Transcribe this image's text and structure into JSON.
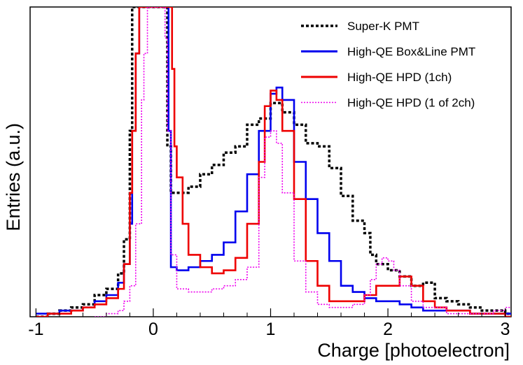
{
  "chart_data": {
    "type": "line",
    "xlabel": "Charge [photoelectron]",
    "ylabel": "Entries (a.u.)",
    "xlim": [
      -1.05,
      3.05
    ],
    "ylim": [
      0,
      1.0
    ],
    "xticks": [
      -1,
      0,
      1,
      2,
      3
    ],
    "grid": false,
    "legend_position": "top-right",
    "series": [
      {
        "name": "Super-K PMT",
        "color": "#000000",
        "style": "dotted",
        "points": [
          [
            -1.0,
            0.0
          ],
          [
            -0.9,
            0.01
          ],
          [
            -0.8,
            0.02
          ],
          [
            -0.7,
            0.03
          ],
          [
            -0.6,
            0.04
          ],
          [
            -0.5,
            0.07
          ],
          [
            -0.4,
            0.09
          ],
          [
            -0.3,
            0.14
          ],
          [
            -0.25,
            0.25
          ],
          [
            -0.2,
            0.6
          ],
          [
            -0.18,
            1.0
          ],
          [
            -0.12,
            1.0
          ],
          [
            -0.05,
            1.0
          ],
          [
            0.1,
            1.0
          ],
          [
            0.12,
            0.55
          ],
          [
            0.15,
            0.4
          ],
          [
            0.2,
            0.4
          ],
          [
            0.3,
            0.42
          ],
          [
            0.4,
            0.46
          ],
          [
            0.5,
            0.49
          ],
          [
            0.6,
            0.53
          ],
          [
            0.7,
            0.55
          ],
          [
            0.8,
            0.62
          ],
          [
            0.9,
            0.64
          ],
          [
            1.0,
            0.69
          ],
          [
            1.1,
            0.66
          ],
          [
            1.2,
            0.62
          ],
          [
            1.3,
            0.56
          ],
          [
            1.4,
            0.55
          ],
          [
            1.5,
            0.48
          ],
          [
            1.6,
            0.39
          ],
          [
            1.7,
            0.31
          ],
          [
            1.8,
            0.27
          ],
          [
            1.85,
            0.2
          ],
          [
            1.9,
            0.17
          ],
          [
            2.0,
            0.15
          ],
          [
            2.1,
            0.13
          ],
          [
            2.2,
            0.1
          ],
          [
            2.3,
            0.11
          ],
          [
            2.4,
            0.06
          ],
          [
            2.5,
            0.05
          ],
          [
            2.6,
            0.04
          ],
          [
            2.7,
            0.03
          ],
          [
            2.8,
            0.02
          ],
          [
            2.9,
            0.02
          ],
          [
            3.0,
            0.01
          ]
        ]
      },
      {
        "name": "High-QE Box&Line PMT",
        "color": "#0000ee",
        "style": "solid",
        "points": [
          [
            -1.0,
            0.01
          ],
          [
            -0.9,
            0.01
          ],
          [
            -0.8,
            0.02
          ],
          [
            -0.7,
            0.02
          ],
          [
            -0.6,
            0.03
          ],
          [
            -0.5,
            0.05
          ],
          [
            -0.4,
            0.07
          ],
          [
            -0.3,
            0.11
          ],
          [
            -0.25,
            0.17
          ],
          [
            -0.2,
            0.3
          ],
          [
            -0.18,
            0.6
          ],
          [
            -0.15,
            0.85
          ],
          [
            -0.12,
            1.0
          ],
          [
            0.1,
            1.0
          ],
          [
            0.13,
            0.6
          ],
          [
            0.15,
            0.16
          ],
          [
            0.2,
            0.15
          ],
          [
            0.3,
            0.16
          ],
          [
            0.4,
            0.18
          ],
          [
            0.5,
            0.2
          ],
          [
            0.6,
            0.24
          ],
          [
            0.7,
            0.34
          ],
          [
            0.8,
            0.46
          ],
          [
            0.9,
            0.6
          ],
          [
            1.0,
            0.72
          ],
          [
            1.05,
            0.74
          ],
          [
            1.1,
            0.7
          ],
          [
            1.2,
            0.5
          ],
          [
            1.3,
            0.38
          ],
          [
            1.4,
            0.27
          ],
          [
            1.5,
            0.18
          ],
          [
            1.6,
            0.1
          ],
          [
            1.7,
            0.08
          ],
          [
            1.8,
            0.06
          ],
          [
            1.9,
            0.05
          ],
          [
            2.0,
            0.05
          ],
          [
            2.1,
            0.04
          ],
          [
            2.2,
            0.03
          ],
          [
            2.3,
            0.02
          ],
          [
            2.5,
            0.02
          ],
          [
            2.7,
            0.01
          ],
          [
            3.0,
            0.01
          ]
        ]
      },
      {
        "name": "High-QE HPD (1ch)",
        "color": "#ee0000",
        "style": "solid",
        "points": [
          [
            -1.0,
            0.0
          ],
          [
            -0.9,
            0.01
          ],
          [
            -0.8,
            0.01
          ],
          [
            -0.7,
            0.02
          ],
          [
            -0.6,
            0.03
          ],
          [
            -0.5,
            0.04
          ],
          [
            -0.4,
            0.06
          ],
          [
            -0.3,
            0.09
          ],
          [
            -0.25,
            0.17
          ],
          [
            -0.2,
            0.4
          ],
          [
            -0.18,
            0.6
          ],
          [
            -0.15,
            0.85
          ],
          [
            -0.12,
            1.0
          ],
          [
            0.15,
            1.0
          ],
          [
            0.16,
            0.8
          ],
          [
            0.18,
            0.55
          ],
          [
            0.2,
            0.45
          ],
          [
            0.25,
            0.3
          ],
          [
            0.3,
            0.2
          ],
          [
            0.4,
            0.16
          ],
          [
            0.5,
            0.14
          ],
          [
            0.6,
            0.15
          ],
          [
            0.7,
            0.19
          ],
          [
            0.8,
            0.3
          ],
          [
            0.9,
            0.5
          ],
          [
            0.95,
            0.68
          ],
          [
            1.0,
            0.73
          ],
          [
            1.05,
            0.7
          ],
          [
            1.1,
            0.6
          ],
          [
            1.2,
            0.38
          ],
          [
            1.3,
            0.18
          ],
          [
            1.4,
            0.1
          ],
          [
            1.5,
            0.05
          ],
          [
            1.6,
            0.05
          ],
          [
            1.7,
            0.05
          ],
          [
            1.8,
            0.07
          ],
          [
            1.9,
            0.1
          ],
          [
            2.0,
            0.1
          ],
          [
            2.1,
            0.13
          ],
          [
            2.2,
            0.1
          ],
          [
            2.3,
            0.05
          ],
          [
            2.4,
            0.03
          ],
          [
            2.5,
            0.02
          ],
          [
            2.7,
            0.01
          ],
          [
            3.0,
            0.0
          ]
        ]
      },
      {
        "name": "High-QE HPD (1 of 2ch)",
        "color": "#ee00ee",
        "style": "dotted",
        "points": [
          [
            -0.5,
            0.0
          ],
          [
            -0.4,
            0.01
          ],
          [
            -0.3,
            0.02
          ],
          [
            -0.25,
            0.05
          ],
          [
            -0.2,
            0.1
          ],
          [
            -0.15,
            0.3
          ],
          [
            -0.1,
            0.7
          ],
          [
            -0.08,
            0.85
          ],
          [
            -0.05,
            1.0
          ],
          [
            0.05,
            1.0
          ],
          [
            0.1,
            0.9
          ],
          [
            0.12,
            0.6
          ],
          [
            0.15,
            0.2
          ],
          [
            0.2,
            0.09
          ],
          [
            0.3,
            0.08
          ],
          [
            0.4,
            0.08
          ],
          [
            0.5,
            0.09
          ],
          [
            0.6,
            0.1
          ],
          [
            0.7,
            0.12
          ],
          [
            0.8,
            0.16
          ],
          [
            0.9,
            0.45
          ],
          [
            0.95,
            0.58
          ],
          [
            1.0,
            0.6
          ],
          [
            1.05,
            0.56
          ],
          [
            1.1,
            0.4
          ],
          [
            1.2,
            0.18
          ],
          [
            1.3,
            0.08
          ],
          [
            1.4,
            0.04
          ],
          [
            1.5,
            0.03
          ],
          [
            1.6,
            0.03
          ],
          [
            1.7,
            0.04
          ],
          [
            1.8,
            0.07
          ],
          [
            1.85,
            0.12
          ],
          [
            1.9,
            0.17
          ],
          [
            1.95,
            0.19
          ],
          [
            2.0,
            0.18
          ],
          [
            2.05,
            0.15
          ],
          [
            2.1,
            0.1
          ],
          [
            2.2,
            0.05
          ],
          [
            2.3,
            0.03
          ],
          [
            2.5,
            0.01
          ],
          [
            2.7,
            0.01
          ],
          [
            2.9,
            0.02
          ],
          [
            3.0,
            0.03
          ]
        ]
      }
    ]
  }
}
